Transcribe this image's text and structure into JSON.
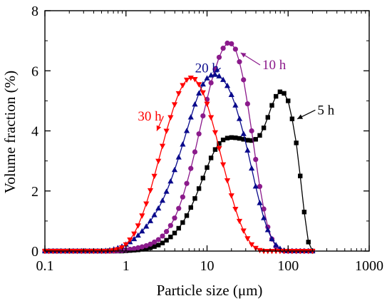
{
  "chart_data": {
    "type": "line",
    "xlabel": "Particle size (μm)",
    "ylabel": "Volume fraction (%)",
    "xscale": "log",
    "xlim": [
      0.1,
      1000
    ],
    "ylim": [
      0,
      8
    ],
    "xticks": [
      {
        "value": 0.1,
        "label": "0.1"
      },
      {
        "value": 1,
        "label": "1"
      },
      {
        "value": 10,
        "label": "10"
      },
      {
        "value": 100,
        "label": "100"
      },
      {
        "value": 1000,
        "label": "1000"
      }
    ],
    "yticks": [
      {
        "value": 0,
        "label": "0"
      },
      {
        "value": 2,
        "label": "2"
      },
      {
        "value": 4,
        "label": "4"
      },
      {
        "value": 6,
        "label": "6"
      },
      {
        "value": 8,
        "label": "8"
      }
    ],
    "grid": false,
    "series": [
      {
        "name": "5 h",
        "color": "#000000",
        "marker": "square",
        "points": [
          [
            0.1,
            0
          ],
          [
            0.112,
            0
          ],
          [
            0.126,
            0
          ],
          [
            0.141,
            0
          ],
          [
            0.158,
            0
          ],
          [
            0.178,
            0
          ],
          [
            0.2,
            0
          ],
          [
            0.224,
            0
          ],
          [
            0.251,
            0
          ],
          [
            0.282,
            0
          ],
          [
            0.316,
            0
          ],
          [
            0.355,
            0
          ],
          [
            0.398,
            0
          ],
          [
            0.447,
            0
          ],
          [
            0.501,
            0
          ],
          [
            0.562,
            0
          ],
          [
            0.631,
            0
          ],
          [
            0.708,
            0
          ],
          [
            0.794,
            0
          ],
          [
            0.891,
            0
          ],
          [
            1,
            0.01
          ],
          [
            1.12,
            0.02
          ],
          [
            1.26,
            0.03
          ],
          [
            1.41,
            0.04
          ],
          [
            1.58,
            0.06
          ],
          [
            1.78,
            0.08
          ],
          [
            2,
            0.11
          ],
          [
            2.24,
            0.15
          ],
          [
            2.51,
            0.2
          ],
          [
            2.82,
            0.27
          ],
          [
            3.16,
            0.36
          ],
          [
            3.55,
            0.47
          ],
          [
            3.98,
            0.6
          ],
          [
            4.47,
            0.76
          ],
          [
            5.01,
            0.95
          ],
          [
            5.62,
            1.18
          ],
          [
            6.31,
            1.45
          ],
          [
            7.08,
            1.75
          ],
          [
            7.94,
            2.08
          ],
          [
            8.91,
            2.43
          ],
          [
            10,
            2.78
          ],
          [
            11.2,
            3.1
          ],
          [
            12.6,
            3.38
          ],
          [
            14.1,
            3.58
          ],
          [
            15.8,
            3.7
          ],
          [
            17.8,
            3.76
          ],
          [
            20,
            3.78
          ],
          [
            22.4,
            3.77
          ],
          [
            25.1,
            3.75
          ],
          [
            28.2,
            3.72
          ],
          [
            31.6,
            3.69
          ],
          [
            35.5,
            3.68
          ],
          [
            39.8,
            3.72
          ],
          [
            44.7,
            3.85
          ],
          [
            50.1,
            4.1
          ],
          [
            56.2,
            4.45
          ],
          [
            63.1,
            4.85
          ],
          [
            70.8,
            5.15
          ],
          [
            79.4,
            5.3
          ],
          [
            89.1,
            5.25
          ],
          [
            100,
            5
          ],
          [
            112,
            4.4
          ],
          [
            126,
            3.6
          ],
          [
            141,
            2.5
          ],
          [
            158,
            1.3
          ],
          [
            178,
            0.3
          ],
          [
            200,
            0
          ]
        ]
      },
      {
        "name": "10 h",
        "color": "#8B1A8B",
        "marker": "circle",
        "points": [
          [
            0.1,
            0
          ],
          [
            0.112,
            0
          ],
          [
            0.126,
            0
          ],
          [
            0.141,
            0
          ],
          [
            0.158,
            0
          ],
          [
            0.178,
            0
          ],
          [
            0.2,
            0
          ],
          [
            0.224,
            0
          ],
          [
            0.251,
            0
          ],
          [
            0.282,
            0
          ],
          [
            0.316,
            0
          ],
          [
            0.355,
            0
          ],
          [
            0.398,
            0
          ],
          [
            0.447,
            0
          ],
          [
            0.501,
            0
          ],
          [
            0.562,
            0
          ],
          [
            0.631,
            0
          ],
          [
            0.708,
            0
          ],
          [
            0.794,
            0.01
          ],
          [
            0.891,
            0.02
          ],
          [
            1,
            0.04
          ],
          [
            1.12,
            0.06
          ],
          [
            1.26,
            0.08
          ],
          [
            1.41,
            0.11
          ],
          [
            1.58,
            0.14
          ],
          [
            1.78,
            0.18
          ],
          [
            2,
            0.23
          ],
          [
            2.24,
            0.3
          ],
          [
            2.51,
            0.38
          ],
          [
            2.82,
            0.5
          ],
          [
            3.16,
            0.65
          ],
          [
            3.55,
            0.85
          ],
          [
            3.98,
            1.1
          ],
          [
            4.47,
            1.42
          ],
          [
            5.01,
            1.8
          ],
          [
            5.62,
            2.25
          ],
          [
            6.31,
            2.75
          ],
          [
            7.08,
            3.3
          ],
          [
            7.94,
            3.9
          ],
          [
            8.91,
            4.5
          ],
          [
            10,
            5.05
          ],
          [
            11.2,
            5.6
          ],
          [
            12.6,
            6.05
          ],
          [
            14.1,
            6.45
          ],
          [
            15.8,
            6.75
          ],
          [
            17.8,
            6.92
          ],
          [
            20,
            6.9
          ],
          [
            22.4,
            6.72
          ],
          [
            25.1,
            6.3
          ],
          [
            28.2,
            5.7
          ],
          [
            31.6,
            4.9
          ],
          [
            35.5,
            4
          ],
          [
            39.8,
            3.05
          ],
          [
            44.7,
            2.15
          ],
          [
            50.1,
            1.4
          ],
          [
            56.2,
            0.8
          ],
          [
            63.1,
            0.4
          ],
          [
            70.8,
            0.15
          ],
          [
            79.4,
            0.04
          ],
          [
            89.1,
            0
          ],
          [
            100,
            0
          ],
          [
            112,
            0
          ],
          [
            126,
            0
          ],
          [
            141,
            0
          ],
          [
            158,
            0
          ],
          [
            178,
            0
          ],
          [
            200,
            0
          ]
        ]
      },
      {
        "name": "20 h",
        "color": "#0A0A8C",
        "marker": "triangle-up",
        "points": [
          [
            0.1,
            0
          ],
          [
            0.112,
            0
          ],
          [
            0.126,
            0
          ],
          [
            0.141,
            0
          ],
          [
            0.158,
            0
          ],
          [
            0.178,
            0
          ],
          [
            0.2,
            0
          ],
          [
            0.224,
            0
          ],
          [
            0.251,
            0
          ],
          [
            0.282,
            0
          ],
          [
            0.316,
            0
          ],
          [
            0.355,
            0
          ],
          [
            0.398,
            0
          ],
          [
            0.447,
            0
          ],
          [
            0.501,
            0
          ],
          [
            0.562,
            0.01
          ],
          [
            0.631,
            0.03
          ],
          [
            0.708,
            0.06
          ],
          [
            0.794,
            0.1
          ],
          [
            0.891,
            0.15
          ],
          [
            1,
            0.22
          ],
          [
            1.12,
            0.3
          ],
          [
            1.26,
            0.4
          ],
          [
            1.41,
            0.52
          ],
          [
            1.58,
            0.66
          ],
          [
            1.78,
            0.82
          ],
          [
            2,
            1
          ],
          [
            2.24,
            1.2
          ],
          [
            2.51,
            1.42
          ],
          [
            2.82,
            1.68
          ],
          [
            3.16,
            1.98
          ],
          [
            3.55,
            2.32
          ],
          [
            3.98,
            2.7
          ],
          [
            4.47,
            3.12
          ],
          [
            5.01,
            3.55
          ],
          [
            5.62,
            4
          ],
          [
            6.31,
            4.45
          ],
          [
            7.08,
            4.88
          ],
          [
            7.94,
            5.25
          ],
          [
            8.91,
            5.55
          ],
          [
            10,
            5.75
          ],
          [
            11.2,
            5.85
          ],
          [
            12.6,
            5.87
          ],
          [
            14.1,
            5.82
          ],
          [
            15.8,
            5.7
          ],
          [
            17.8,
            5.5
          ],
          [
            20,
            5.2
          ],
          [
            22.4,
            4.85
          ],
          [
            25.1,
            4.4
          ],
          [
            28.2,
            3.9
          ],
          [
            31.6,
            3.35
          ],
          [
            35.5,
            2.75
          ],
          [
            39.8,
            2.15
          ],
          [
            44.7,
            1.6
          ],
          [
            50.1,
            1.1
          ],
          [
            56.2,
            0.7
          ],
          [
            63.1,
            0.4
          ],
          [
            70.8,
            0.2
          ],
          [
            79.4,
            0.08
          ],
          [
            89.1,
            0.02
          ],
          [
            100,
            0
          ],
          [
            112,
            0
          ],
          [
            126,
            0
          ],
          [
            141,
            0
          ],
          [
            158,
            0
          ],
          [
            178,
            0
          ],
          [
            200,
            0
          ]
        ]
      },
      {
        "name": "30 h",
        "color": "#FF0000",
        "marker": "triangle-down",
        "points": [
          [
            0.1,
            0
          ],
          [
            0.112,
            0
          ],
          [
            0.126,
            0
          ],
          [
            0.141,
            0
          ],
          [
            0.158,
            0
          ],
          [
            0.178,
            0
          ],
          [
            0.2,
            0
          ],
          [
            0.224,
            0
          ],
          [
            0.251,
            0
          ],
          [
            0.282,
            0
          ],
          [
            0.316,
            0
          ],
          [
            0.355,
            0
          ],
          [
            0.398,
            0
          ],
          [
            0.447,
            0
          ],
          [
            0.501,
            0
          ],
          [
            0.562,
            0
          ],
          [
            0.631,
            0.01
          ],
          [
            0.708,
            0.03
          ],
          [
            0.794,
            0.06
          ],
          [
            0.891,
            0.12
          ],
          [
            1,
            0.22
          ],
          [
            1.12,
            0.38
          ],
          [
            1.26,
            0.58
          ],
          [
            1.41,
            0.85
          ],
          [
            1.58,
            1.18
          ],
          [
            1.78,
            1.58
          ],
          [
            2,
            2.02
          ],
          [
            2.24,
            2.5
          ],
          [
            2.51,
            3
          ],
          [
            2.82,
            3.5
          ],
          [
            3.16,
            4
          ],
          [
            3.55,
            4.45
          ],
          [
            3.98,
            4.88
          ],
          [
            4.47,
            5.25
          ],
          [
            5.01,
            5.52
          ],
          [
            5.62,
            5.7
          ],
          [
            6.31,
            5.77
          ],
          [
            7.08,
            5.72
          ],
          [
            7.94,
            5.55
          ],
          [
            8.91,
            5.28
          ],
          [
            10,
            4.9
          ],
          [
            11.2,
            4.45
          ],
          [
            12.6,
            3.95
          ],
          [
            14.1,
            3.42
          ],
          [
            15.8,
            2.88
          ],
          [
            17.8,
            2.35
          ],
          [
            20,
            1.85
          ],
          [
            22.4,
            1.4
          ],
          [
            25.1,
            1
          ],
          [
            28.2,
            0.68
          ],
          [
            31.6,
            0.42
          ],
          [
            35.5,
            0.22
          ],
          [
            39.8,
            0.1
          ],
          [
            44.7,
            0.03
          ],
          [
            50.1,
            0
          ],
          [
            56.2,
            0
          ],
          [
            63.1,
            0
          ],
          [
            70.8,
            0
          ],
          [
            79.4,
            0
          ],
          [
            89.1,
            0
          ],
          [
            100,
            0
          ],
          [
            112,
            0
          ],
          [
            126,
            0
          ],
          [
            141,
            0
          ],
          [
            158,
            0
          ],
          [
            178,
            0
          ],
          [
            200,
            0
          ]
        ]
      }
    ],
    "annotations": [
      {
        "text": "5 h",
        "series": "5 h",
        "color": "#000000",
        "x": 230,
        "y": 4.55,
        "anchor": "start",
        "arrow_to": [
          130,
          4.4
        ]
      },
      {
        "text": "10 h",
        "series": "10 h",
        "color": "#8B1A8B",
        "x": 48,
        "y": 6.05,
        "anchor": "start",
        "arrow_to": [
          26,
          6.6
        ]
      },
      {
        "text": "20 h",
        "series": "20 h",
        "color": "#0A0A8C",
        "x": 7.1,
        "y": 5.95,
        "anchor": "start",
        "arrow_to": [
          12.3,
          5.95
        ]
      },
      {
        "text": "30 h",
        "series": "30 h",
        "color": "#FF0000",
        "x": 1.4,
        "y": 4.35,
        "anchor": "start",
        "arrow_to": [
          2.4,
          4.0
        ]
      }
    ]
  }
}
